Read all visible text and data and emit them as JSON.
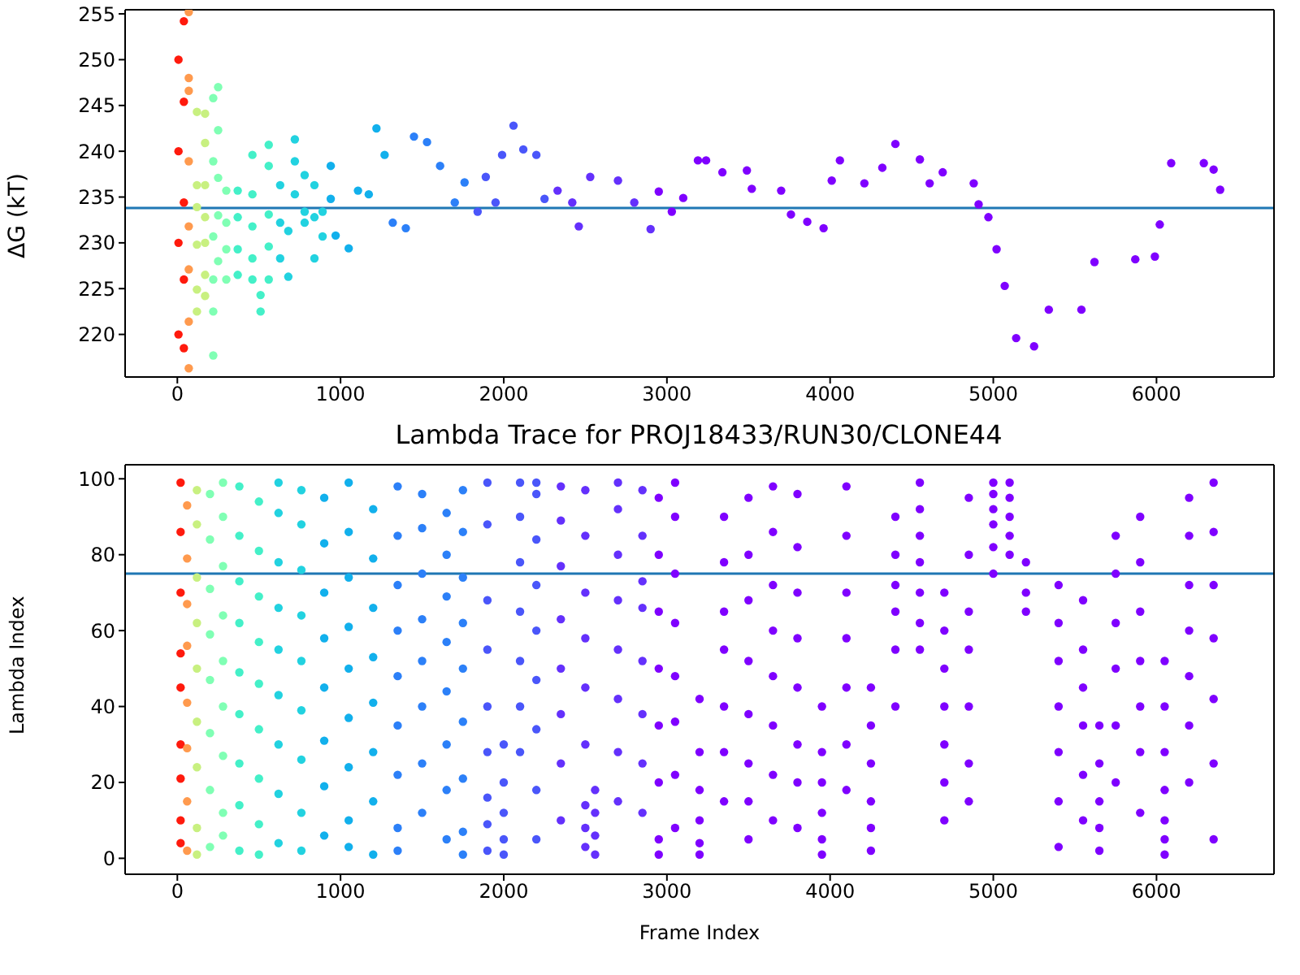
{
  "chart_data": [
    {
      "type": "scatter",
      "ylabel": "ΔG (kT)",
      "xlim": [
        -320,
        6720
      ],
      "ylim": [
        215.35,
        255.45
      ],
      "xticks": [
        0,
        1000,
        2000,
        3000,
        4000,
        5000,
        6000
      ],
      "yticks": [
        220,
        225,
        230,
        235,
        240,
        245,
        250,
        255
      ],
      "marker": "circle",
      "ref_lines": [
        {
          "axis": "y",
          "value": 233.8,
          "color": "#1f77b4"
        }
      ],
      "series": [
        {
          "color": "#ff1a0d",
          "x": [
            7,
            7,
            7,
            7,
            40,
            40,
            40,
            40,
            40
          ],
          "values": [
            250,
            240,
            230,
            220,
            254.2,
            245.4,
            234.4,
            226,
            218.5
          ]
        },
        {
          "color": "#ff9a4e",
          "x": [
            70,
            70,
            70,
            70,
            70,
            70,
            70,
            70
          ],
          "values": [
            255.2,
            248,
            246.6,
            238.9,
            231.8,
            227.1,
            221.4,
            216.3
          ]
        },
        {
          "color": "#c8f080",
          "x": [
            120,
            120,
            120,
            120,
            120,
            120,
            170,
            170,
            170,
            170,
            170,
            170,
            170
          ],
          "values": [
            244.3,
            236.3,
            233.9,
            229.8,
            224.9,
            222.5,
            244.1,
            240.9,
            236.3,
            232.8,
            230,
            226.5,
            224.2
          ]
        },
        {
          "color": "#80ffb4",
          "x": [
            220,
            220,
            220,
            220,
            220,
            220,
            250,
            250,
            250,
            250,
            250,
            300,
            300,
            300,
            300
          ],
          "values": [
            245.8,
            238.9,
            230.7,
            226,
            222.5,
            217.7,
            247,
            242.3,
            237.1,
            233,
            228,
            235.7,
            232.2,
            229.3,
            226
          ]
        },
        {
          "color": "#44f0c8",
          "x": [
            370,
            370,
            370,
            370,
            460,
            460,
            460,
            460,
            460,
            510,
            510,
            560,
            560,
            560,
            560,
            560
          ],
          "values": [
            235.7,
            232.8,
            229.3,
            226.5,
            239.6,
            235.3,
            231.8,
            228.3,
            226,
            224.3,
            222.5,
            240.7,
            238.4,
            233.1,
            229.6,
            226
          ]
        },
        {
          "color": "#22d2e0",
          "x": [
            630,
            630,
            630,
            680,
            680,
            720,
            720,
            720,
            780,
            780,
            780,
            840,
            840,
            840,
            890,
            890
          ],
          "values": [
            236.3,
            232.2,
            228.3,
            231.3,
            226.3,
            241.3,
            238.9,
            235.3,
            237.4,
            233.4,
            232.2,
            236.3,
            232.8,
            228.3,
            233.4,
            230.7
          ]
        },
        {
          "color": "#12b0ec",
          "x": [
            940,
            940,
            970,
            1050,
            1107,
            1173,
            1220,
            1270
          ],
          "values": [
            238.4,
            234.8,
            230.8,
            229.4,
            235.7,
            235.3,
            242.5,
            239.6
          ]
        },
        {
          "color": "#2c80f8",
          "x": [
            1320,
            1400,
            1450,
            1530,
            1610,
            1700,
            1760
          ],
          "values": [
            232.2,
            231.6,
            241.6,
            241,
            238.4,
            234.4,
            236.6
          ]
        },
        {
          "color": "#4a56fa",
          "x": [
            1840,
            1890,
            1950,
            1990,
            2060,
            2120,
            2200,
            2250
          ],
          "values": [
            233.4,
            237.2,
            234.4,
            239.6,
            242.8,
            240.2,
            239.6,
            234.8
          ]
        },
        {
          "color": "#6430fc",
          "x": [
            2330,
            2420,
            2460,
            2530,
            2700,
            2800,
            2900
          ],
          "values": [
            235.7,
            234.4,
            231.8,
            237.2,
            236.8,
            234.4,
            231.5
          ]
        },
        {
          "color": "#7f00ff",
          "x": [
            2950,
            3030,
            3100,
            3190,
            3240,
            3340,
            3490,
            3520,
            3700,
            3760,
            3860,
            3960,
            4010,
            4060,
            4210,
            4320,
            4400,
            4550,
            4610,
            4690,
            4880,
            4910,
            4970,
            5020,
            5070,
            5140,
            5250,
            5340,
            5540,
            5620,
            5870,
            5990,
            6020,
            6090,
            6290,
            6350,
            6390
          ],
          "values": [
            235.6,
            233.4,
            234.9,
            239,
            239,
            237.7,
            237.9,
            235.9,
            235.7,
            233.1,
            232.3,
            231.6,
            236.8,
            239,
            236.5,
            238.2,
            240.8,
            239.1,
            236.5,
            237.7,
            236.5,
            234.2,
            232.8,
            229.3,
            225.3,
            219.6,
            218.7,
            222.7,
            222.7,
            227.9,
            228.2,
            228.5,
            232,
            238.7,
            238.7,
            238,
            235.8
          ]
        }
      ]
    },
    {
      "type": "scatter",
      "title": "Lambda Trace for PROJ18433/RUN30/CLONE44",
      "xlabel": "Frame Index",
      "ylabel": "Lambda Index",
      "xlim": [
        -320,
        6720
      ],
      "ylim": [
        -4.2,
        103.7
      ],
      "xticks": [
        0,
        1000,
        2000,
        3000,
        4000,
        5000,
        6000
      ],
      "yticks": [
        0,
        20,
        40,
        60,
        80,
        100
      ],
      "marker": "circle",
      "ref_lines": [
        {
          "axis": "y",
          "value": 75,
          "color": "#1f77b4"
        }
      ],
      "series": [
        {
          "color": "#ff1a0d",
          "x": [
            20,
            20,
            20,
            20,
            20,
            20,
            20,
            20,
            20
          ],
          "values": [
            4,
            10,
            21,
            30,
            45,
            54,
            70,
            86,
            99
          ]
        },
        {
          "color": "#ff9a4e",
          "x": [
            60,
            60,
            60,
            60,
            60,
            60,
            60,
            60
          ],
          "values": [
            2,
            15,
            29,
            41,
            56,
            67,
            79,
            93
          ]
        },
        {
          "color": "#c8f080",
          "x": [
            120,
            120,
            120,
            120,
            120,
            120,
            120,
            120,
            120
          ],
          "values": [
            1,
            8,
            24,
            36,
            50,
            62,
            74,
            88,
            97
          ]
        },
        {
          "color": "#80ffb4",
          "x": [
            200,
            200,
            200,
            200,
            200,
            200,
            200,
            200,
            280,
            280,
            280,
            280,
            280,
            280,
            280,
            280,
            280
          ],
          "values": [
            3,
            18,
            33,
            47,
            59,
            71,
            84,
            96,
            6,
            12,
            27,
            40,
            52,
            64,
            77,
            90,
            99
          ]
        },
        {
          "color": "#44f0c8",
          "x": [
            380,
            380,
            380,
            380,
            380,
            380,
            380,
            380,
            380,
            500,
            500,
            500,
            500,
            500,
            500,
            500,
            500,
            500
          ],
          "values": [
            2,
            14,
            25,
            38,
            49,
            62,
            73,
            85,
            98,
            1,
            9,
            21,
            34,
            46,
            57,
            69,
            81,
            94
          ]
        },
        {
          "color": "#22d2e0",
          "x": [
            620,
            620,
            620,
            620,
            620,
            620,
            620,
            620,
            620,
            760,
            760,
            760,
            760,
            760,
            760,
            760,
            760,
            760
          ],
          "values": [
            4,
            17,
            30,
            43,
            55,
            66,
            78,
            91,
            99,
            2,
            12,
            26,
            39,
            52,
            64,
            76,
            88,
            97
          ]
        },
        {
          "color": "#12b0ec",
          "x": [
            900,
            900,
            900,
            900,
            900,
            900,
            900,
            900,
            1050,
            1050,
            1050,
            1050,
            1050,
            1050,
            1050,
            1050,
            1050,
            1200,
            1200,
            1200,
            1200,
            1200,
            1200,
            1200,
            1200
          ],
          "values": [
            6,
            19,
            31,
            45,
            58,
            70,
            83,
            95,
            3,
            10,
            24,
            37,
            50,
            61,
            74,
            86,
            99,
            1,
            15,
            28,
            41,
            53,
            66,
            79,
            92
          ]
        },
        {
          "color": "#2c80f8",
          "x": [
            1350,
            1350,
            1350,
            1350,
            1350,
            1350,
            1350,
            1350,
            1350,
            1500,
            1500,
            1500,
            1500,
            1500,
            1500,
            1500,
            1500,
            1650,
            1650,
            1650,
            1650,
            1650,
            1650,
            1650,
            1650,
            1750,
            1750,
            1750,
            1750,
            1750,
            1750,
            1750,
            1750,
            1750
          ],
          "values": [
            2,
            8,
            22,
            35,
            48,
            60,
            72,
            85,
            98,
            12,
            25,
            40,
            52,
            63,
            75,
            87,
            96,
            5,
            18,
            30,
            44,
            57,
            69,
            80,
            91,
            1,
            7,
            21,
            36,
            50,
            62,
            74,
            86,
            97
          ]
        },
        {
          "color": "#4a56fa",
          "x": [
            1900,
            1900,
            1900,
            1900,
            1900,
            1900,
            1900,
            1900,
            1900,
            2000,
            2000,
            2000,
            2000,
            2000,
            2100,
            2100,
            2100,
            2100,
            2100,
            2100,
            2100,
            2200,
            2200,
            2200,
            2200,
            2200,
            2200,
            2200,
            2200,
            2200
          ],
          "values": [
            2,
            9,
            16,
            28,
            40,
            55,
            68,
            88,
            99,
            1,
            5,
            12,
            20,
            30,
            28,
            40,
            52,
            65,
            78,
            90,
            99,
            5,
            18,
            34,
            47,
            60,
            72,
            84,
            96,
            99
          ]
        },
        {
          "color": "#6430fc",
          "x": [
            2350,
            2350,
            2350,
            2350,
            2350,
            2350,
            2350,
            2350,
            2500,
            2500,
            2500,
            2500,
            2500,
            2500,
            2500,
            2500,
            2500,
            2560,
            2560,
            2560,
            2560,
            2700,
            2700,
            2700,
            2700,
            2700,
            2700,
            2700,
            2700,
            2850,
            2850,
            2850,
            2850,
            2850,
            2850,
            2850,
            2850
          ],
          "values": [
            10,
            25,
            38,
            50,
            63,
            77,
            89,
            98,
            3,
            8,
            14,
            30,
            45,
            58,
            70,
            85,
            97,
            1,
            6,
            12,
            18,
            15,
            28,
            42,
            55,
            68,
            80,
            92,
            99,
            12,
            25,
            38,
            52,
            66,
            73,
            85,
            97
          ]
        },
        {
          "color": "#7f00ff",
          "x": [
            2950,
            2950,
            2950,
            2950,
            2950,
            2950,
            2950,
            2950,
            3050,
            3050,
            3050,
            3050,
            3050,
            3050,
            3050,
            3050,
            3200,
            3200,
            3200,
            3200,
            3200,
            3200,
            3350,
            3350,
            3350,
            3350,
            3350,
            3350,
            3350,
            3500,
            3500,
            3500,
            3500,
            3500,
            3500,
            3500,
            3500,
            3650,
            3650,
            3650,
            3650,
            3650,
            3650,
            3650,
            3650,
            3800,
            3800,
            3800,
            3800,
            3800,
            3800,
            3800,
            3800,
            3950,
            3950,
            3950,
            3950,
            3950,
            3950,
            4100,
            4100,
            4100,
            4100,
            4100,
            4100,
            4100,
            4250,
            4250,
            4250,
            4250,
            4250,
            4250,
            4400,
            4400,
            4400,
            4400,
            4400,
            4400,
            4550,
            4550,
            4550,
            4550,
            4550,
            4550,
            4550,
            4700,
            4700,
            4700,
            4700,
            4700,
            4700,
            4700,
            4850,
            4850,
            4850,
            4850,
            4850,
            4850,
            4850,
            5000,
            5000,
            5000,
            5000,
            5000,
            5000,
            5100,
            5100,
            5100,
            5100,
            5100,
            5200,
            5200,
            5200,
            5400,
            5400,
            5400,
            5400,
            5400,
            5400,
            5400,
            5550,
            5550,
            5550,
            5550,
            5550,
            5550,
            5650,
            5650,
            5650,
            5650,
            5650,
            5750,
            5750,
            5750,
            5750,
            5750,
            5750,
            5900,
            5900,
            5900,
            5900,
            5900,
            5900,
            5900,
            6050,
            6050,
            6050,
            6050,
            6050,
            6050,
            6050,
            6200,
            6200,
            6200,
            6200,
            6200,
            6200,
            6200,
            6350,
            6350,
            6350,
            6350,
            6350,
            6350,
            6350
          ],
          "values": [
            1,
            5,
            20,
            35,
            50,
            65,
            80,
            95,
            8,
            22,
            36,
            48,
            62,
            75,
            90,
            99,
            1,
            4,
            10,
            18,
            28,
            42,
            15,
            28,
            40,
            55,
            65,
            78,
            90,
            5,
            15,
            25,
            38,
            52,
            68,
            80,
            95,
            10,
            22,
            35,
            48,
            60,
            72,
            86,
            98,
            8,
            20,
            30,
            45,
            58,
            70,
            82,
            96,
            1,
            5,
            12,
            20,
            28,
            40,
            18,
            30,
            45,
            58,
            70,
            85,
            98,
            2,
            8,
            15,
            25,
            35,
            45,
            40,
            55,
            65,
            72,
            80,
            90,
            55,
            62,
            70,
            78,
            85,
            92,
            99,
            10,
            20,
            30,
            40,
            50,
            60,
            70,
            15,
            25,
            40,
            55,
            65,
            80,
            95,
            75,
            82,
            88,
            92,
            96,
            99,
            80,
            85,
            90,
            95,
            99,
            65,
            70,
            78,
            3,
            15,
            28,
            40,
            52,
            62,
            72,
            10,
            22,
            35,
            45,
            55,
            68,
            2,
            8,
            15,
            25,
            35,
            20,
            35,
            50,
            62,
            75,
            85,
            12,
            28,
            40,
            52,
            65,
            78,
            90,
            1,
            5,
            10,
            18,
            28,
            40,
            52,
            20,
            35,
            48,
            60,
            72,
            85,
            95,
            5,
            25,
            42,
            58,
            72,
            86,
            99
          ]
        }
      ]
    }
  ]
}
